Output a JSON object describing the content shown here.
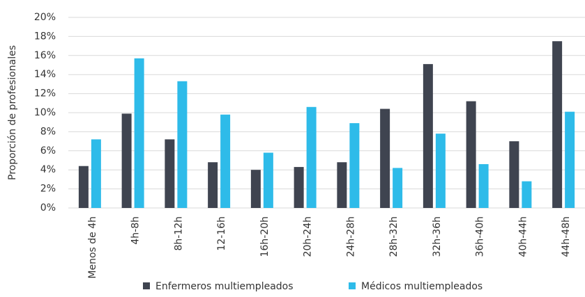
{
  "chart_data": {
    "type": "bar",
    "y_label": "Proporción de profesionales",
    "categories": [
      "Menos de 4h",
      "4h-8h",
      "8h-12h",
      "12-16h",
      "16h-20h",
      "20h-24h",
      "24h-28h",
      "28h-32h",
      "32h-36h",
      "36h-40h",
      "40h-44h",
      "44h-48h"
    ],
    "series": [
      {
        "name": "Enfermeros multiempleados",
        "color": "#3f4450",
        "values": [
          4.4,
          9.9,
          7.2,
          4.8,
          4.0,
          4.3,
          4.8,
          10.4,
          15.1,
          11.2,
          7.0,
          17.5
        ]
      },
      {
        "name": "Médicos multiempleados",
        "color": "#2ebbe9",
        "values": [
          7.2,
          15.7,
          13.3,
          9.8,
          5.8,
          10.6,
          8.9,
          4.2,
          7.8,
          4.6,
          2.8,
          10.1
        ]
      }
    ],
    "ylim": [
      0,
      20
    ],
    "yticks": [
      {
        "value": 0,
        "label": "0%"
      },
      {
        "value": 2,
        "label": "2%"
      },
      {
        "value": 4,
        "label": "4%"
      },
      {
        "value": 6,
        "label": "6%"
      },
      {
        "value": 8,
        "label": "8%"
      },
      {
        "value": 10,
        "label": "10%"
      },
      {
        "value": 12,
        "label": "12%"
      },
      {
        "value": 14,
        "label": "14%"
      },
      {
        "value": 16,
        "label": "16%"
      },
      {
        "value": 18,
        "label": "18%"
      },
      {
        "value": 20,
        "label": "20%"
      }
    ],
    "grid": true
  }
}
